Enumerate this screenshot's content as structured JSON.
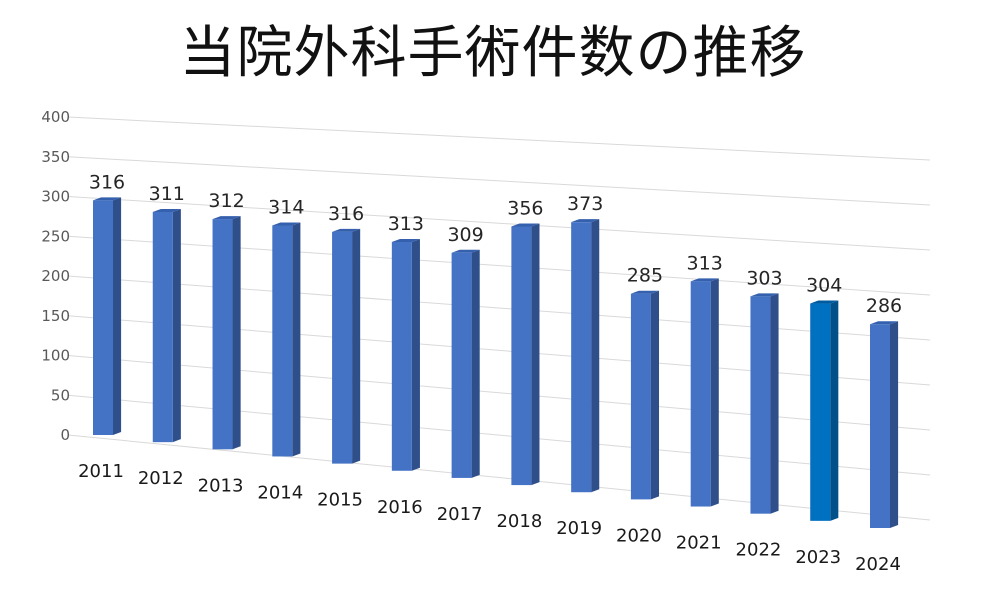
{
  "chart_data": {
    "type": "bar",
    "title": "当院外科手術件数の推移",
    "categories": [
      "2011",
      "2012",
      "2013",
      "2014",
      "2015",
      "2016",
      "2017",
      "2018",
      "2019",
      "2020",
      "2021",
      "2022",
      "2023",
      "2024"
    ],
    "values": [
      316,
      311,
      312,
      314,
      316,
      313,
      309,
      356,
      373,
      285,
      313,
      303,
      304,
      286
    ],
    "data_labels": [
      "316",
      "311",
      "312",
      "314",
      "316",
      "313",
      "309",
      "356",
      "373",
      "285",
      "313",
      "303",
      "304",
      "286"
    ],
    "y_ticks": [
      "0",
      "50",
      "100",
      "150",
      "200",
      "250",
      "300",
      "350",
      "400"
    ],
    "ylim": [
      0,
      400
    ],
    "grid": true,
    "legend": "none",
    "colors": {
      "bar_front": "#4472C4",
      "bar_side": "#2F4F8A",
      "bar_top": "#3560AD",
      "highlight_front": "#0070C0",
      "highlight_side": "#00508A",
      "highlight_top": "#005A9E",
      "highlight_index": 12,
      "grid": "#D9D9D9",
      "tick_text": "#595959",
      "label_text": "#262626"
    }
  }
}
